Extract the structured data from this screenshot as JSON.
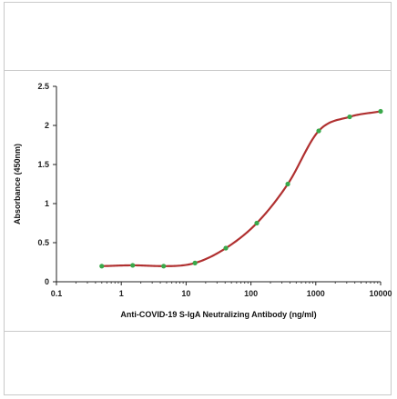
{
  "chart_data": {
    "type": "line",
    "title": "",
    "xlabel": "Anti-COVID-19 S-IgA Neutralizing Antibody (ng/ml)",
    "ylabel": "Absorbance (450nm)",
    "xscale": "log",
    "xlim": [
      0.1,
      10000
    ],
    "ylim": [
      0,
      2.5
    ],
    "x_ticks": [
      "0.1",
      "1",
      "10",
      "100",
      "1000",
      "10000"
    ],
    "y_ticks": [
      "0",
      "0.5",
      "1",
      "1.5",
      "2",
      "2.5"
    ],
    "grid": false,
    "legend": "none",
    "line_color": "#b03030",
    "marker_color": "#3aa84a",
    "series": [
      {
        "x": [
          0.5,
          1.5,
          4.5,
          13.7,
          41,
          123,
          370,
          1111,
          3333,
          10000
        ],
        "y": [
          0.2,
          0.21,
          0.2,
          0.24,
          0.43,
          0.75,
          1.25,
          1.93,
          2.11,
          2.18
        ]
      }
    ]
  }
}
